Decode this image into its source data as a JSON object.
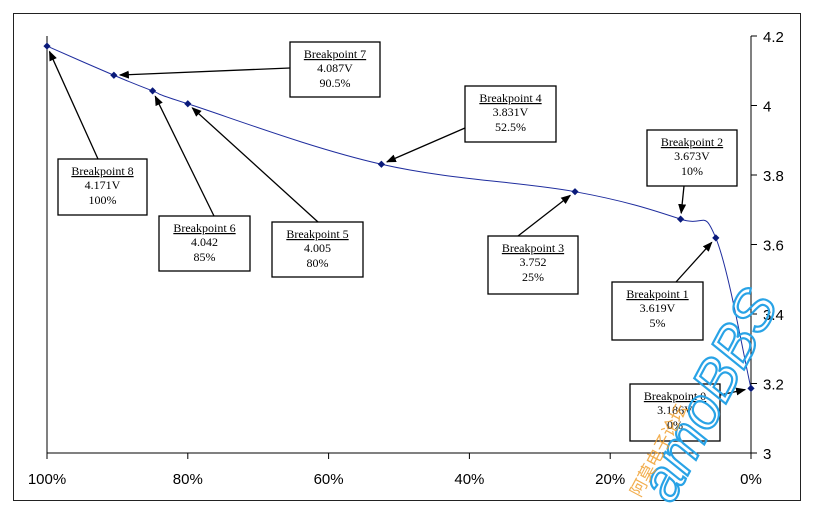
{
  "chart_data": {
    "type": "line",
    "title": "",
    "xlabel": "",
    "ylabel": "",
    "x_ticks": [
      "100%",
      "80%",
      "60%",
      "40%",
      "20%",
      "0%"
    ],
    "x_tick_values": [
      100,
      80,
      60,
      40,
      20,
      0
    ],
    "xlim": [
      100,
      0
    ],
    "y_ticks": [
      "4.2",
      "4",
      "3.8",
      "3.6",
      "3.4",
      "3.2",
      "3"
    ],
    "y_tick_values": [
      4.2,
      4.0,
      3.8,
      3.6,
      3.4,
      3.2,
      3.0
    ],
    "ylim": [
      3.0,
      4.2
    ],
    "y_axis_side": "right",
    "grid": false,
    "line_color": "#1f2d9e",
    "marker_color": "#0a1a7a",
    "series": [
      {
        "points": [
          {
            "x": 100,
            "y": 4.171
          },
          {
            "x": 90.5,
            "y": 4.087
          },
          {
            "x": 85,
            "y": 4.042
          },
          {
            "x": 80,
            "y": 4.005
          },
          {
            "x": 52.5,
            "y": 3.831
          },
          {
            "x": 25,
            "y": 3.752
          },
          {
            "x": 10,
            "y": 3.673
          },
          {
            "x": 5,
            "y": 3.619
          },
          {
            "x": 0,
            "y": 3.186
          }
        ]
      }
    ],
    "annotations": [
      {
        "title": "Breakpoint 8",
        "line1": "4.171V",
        "line2": "100%",
        "target": 0
      },
      {
        "title": "Breakpoint 7",
        "line1": "4.087V",
        "line2": "90.5%",
        "target": 1
      },
      {
        "title": "Breakpoint 6",
        "line1": "4.042",
        "line2": "85%",
        "target": 2
      },
      {
        "title": "Breakpoint 5",
        "line1": "4.005",
        "line2": "80%",
        "target": 3
      },
      {
        "title": "Breakpoint 4",
        "line1": "3.831V",
        "line2": "52.5%",
        "target": 4
      },
      {
        "title": "Breakpoint 3",
        "line1": "3.752",
        "line2": "25%",
        "target": 5
      },
      {
        "title": "Breakpoint 2",
        "line1": "3.673V",
        "line2": "10%",
        "target": 6
      },
      {
        "title": "Breakpoint 1",
        "line1": "3.619V",
        "line2": "5%",
        "target": 7
      },
      {
        "title": "Breakpoint 0",
        "line1": "3.186V",
        "line2": "0%",
        "target": 8
      }
    ]
  },
  "watermark": {
    "brand": "amoBBS",
    "cn": "阿莫电子论坛",
    "brand_color": "#29a3e6",
    "cn_color": "#f0a030"
  }
}
